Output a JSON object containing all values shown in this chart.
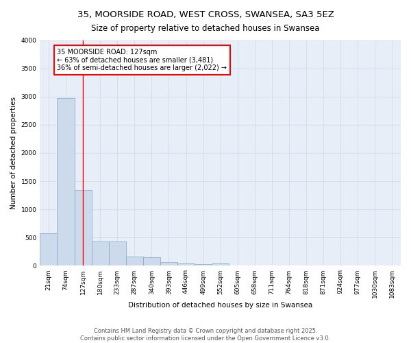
{
  "title": "35, MOORSIDE ROAD, WEST CROSS, SWANSEA, SA3 5EZ",
  "subtitle": "Size of property relative to detached houses in Swansea",
  "xlabel": "Distribution of detached houses by size in Swansea",
  "ylabel": "Number of detached properties",
  "categories": [
    "21sqm",
    "74sqm",
    "127sqm",
    "180sqm",
    "233sqm",
    "287sqm",
    "340sqm",
    "393sqm",
    "446sqm",
    "499sqm",
    "552sqm",
    "605sqm",
    "658sqm",
    "711sqm",
    "764sqm",
    "818sqm",
    "871sqm",
    "924sqm",
    "977sqm",
    "1030sqm",
    "1083sqm"
  ],
  "values": [
    580,
    2970,
    1340,
    430,
    430,
    160,
    155,
    65,
    40,
    35,
    40,
    0,
    0,
    0,
    0,
    0,
    0,
    0,
    0,
    0,
    0
  ],
  "bar_color": "#ccdaeb",
  "bar_edge_color": "#7aaacb",
  "bar_edge_width": 0.5,
  "red_line_index": 2,
  "annotation_text": "35 MOORSIDE ROAD: 127sqm\n← 63% of detached houses are smaller (3,481)\n36% of semi-detached houses are larger (2,022) →",
  "annotation_box_color": "white",
  "annotation_box_edge_color": "red",
  "ylim": [
    0,
    4000
  ],
  "yticks": [
    0,
    500,
    1000,
    1500,
    2000,
    2500,
    3000,
    3500,
    4000
  ],
  "grid_color": "#d0daea",
  "bg_color": "#e8eef8",
  "footer_line1": "Contains HM Land Registry data © Crown copyright and database right 2025.",
  "footer_line2": "Contains public sector information licensed under the Open Government Licence v3.0.",
  "title_fontsize": 9.5,
  "subtitle_fontsize": 8.5,
  "axis_label_fontsize": 7.5,
  "tick_fontsize": 6.5,
  "annotation_fontsize": 7,
  "footer_fontsize": 6
}
